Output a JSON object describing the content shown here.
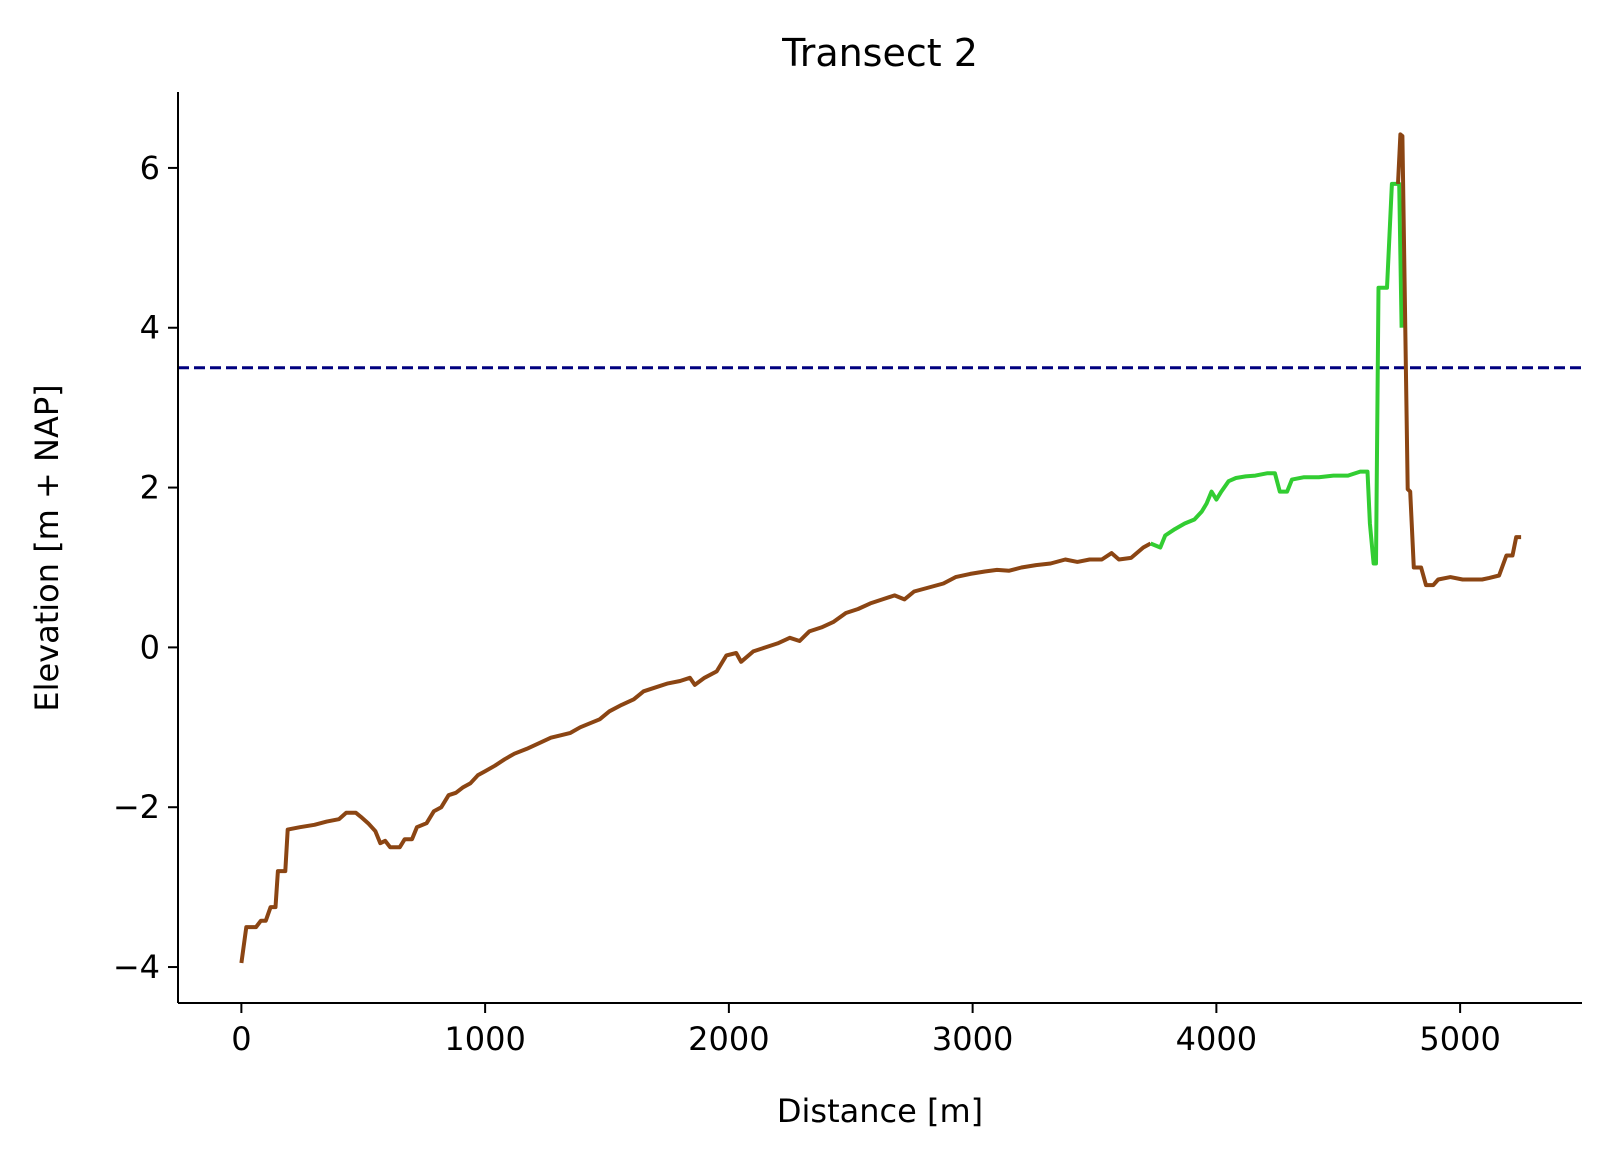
{
  "chart_data": {
    "type": "line",
    "title": "Transect 2",
    "xlabel": "Distance [m]",
    "ylabel": "Elevation [m + NAP]",
    "xlim": [
      -260,
      5500
    ],
    "ylim": [
      -4.45,
      6.95
    ],
    "x_ticks": [
      0,
      1000,
      2000,
      3000,
      4000,
      5000
    ],
    "x_tick_labels": [
      "0",
      "1000",
      "2000",
      "3000",
      "4000",
      "5000"
    ],
    "y_ticks": [
      -4,
      -2,
      0,
      2,
      4,
      6
    ],
    "y_tick_labels": [
      "−4",
      "−2",
      "0",
      "2",
      "4",
      "6"
    ],
    "grid": false,
    "reference_line": {
      "y": 3.5,
      "color": "#00007f",
      "style": "dashed"
    },
    "series": [
      {
        "color": "#8B4513",
        "points": [
          [
            0,
            -3.95
          ],
          [
            20,
            -3.5
          ],
          [
            60,
            -3.5
          ],
          [
            80,
            -3.42
          ],
          [
            100,
            -3.42
          ],
          [
            120,
            -3.25
          ],
          [
            140,
            -3.25
          ],
          [
            150,
            -2.8
          ],
          [
            180,
            -2.8
          ],
          [
            190,
            -2.28
          ],
          [
            240,
            -2.25
          ],
          [
            300,
            -2.22
          ],
          [
            350,
            -2.18
          ],
          [
            400,
            -2.15
          ],
          [
            430,
            -2.07
          ],
          [
            470,
            -2.07
          ],
          [
            490,
            -2.12
          ],
          [
            520,
            -2.2
          ],
          [
            550,
            -2.3
          ],
          [
            570,
            -2.45
          ],
          [
            590,
            -2.42
          ],
          [
            610,
            -2.5
          ],
          [
            650,
            -2.5
          ],
          [
            670,
            -2.4
          ],
          [
            700,
            -2.4
          ],
          [
            720,
            -2.25
          ],
          [
            760,
            -2.2
          ],
          [
            790,
            -2.05
          ],
          [
            820,
            -2.0
          ],
          [
            850,
            -1.85
          ],
          [
            880,
            -1.82
          ],
          [
            910,
            -1.75
          ],
          [
            940,
            -1.7
          ],
          [
            970,
            -1.6
          ],
          [
            1000,
            -1.55
          ],
          [
            1040,
            -1.48
          ],
          [
            1080,
            -1.4
          ],
          [
            1120,
            -1.33
          ],
          [
            1170,
            -1.27
          ],
          [
            1220,
            -1.2
          ],
          [
            1270,
            -1.13
          ],
          [
            1310,
            -1.1
          ],
          [
            1350,
            -1.07
          ],
          [
            1390,
            -1.0
          ],
          [
            1430,
            -0.95
          ],
          [
            1470,
            -0.9
          ],
          [
            1510,
            -0.8
          ],
          [
            1560,
            -0.72
          ],
          [
            1610,
            -0.65
          ],
          [
            1650,
            -0.55
          ],
          [
            1700,
            -0.5
          ],
          [
            1750,
            -0.45
          ],
          [
            1800,
            -0.42
          ],
          [
            1840,
            -0.38
          ],
          [
            1860,
            -0.47
          ],
          [
            1900,
            -0.38
          ],
          [
            1950,
            -0.3
          ],
          [
            1990,
            -0.1
          ],
          [
            2030,
            -0.07
          ],
          [
            2050,
            -0.18
          ],
          [
            2100,
            -0.05
          ],
          [
            2150,
            0.0
          ],
          [
            2200,
            0.05
          ],
          [
            2250,
            0.12
          ],
          [
            2290,
            0.08
          ],
          [
            2330,
            0.2
          ],
          [
            2380,
            0.25
          ],
          [
            2430,
            0.32
          ],
          [
            2480,
            0.43
          ],
          [
            2530,
            0.48
          ],
          [
            2580,
            0.55
          ],
          [
            2630,
            0.6
          ],
          [
            2680,
            0.65
          ],
          [
            2720,
            0.6
          ],
          [
            2760,
            0.7
          ],
          [
            2820,
            0.75
          ],
          [
            2880,
            0.8
          ],
          [
            2930,
            0.88
          ],
          [
            2990,
            0.92
          ],
          [
            3050,
            0.95
          ],
          [
            3100,
            0.97
          ],
          [
            3150,
            0.96
          ],
          [
            3200,
            1.0
          ],
          [
            3260,
            1.03
          ],
          [
            3320,
            1.05
          ],
          [
            3380,
            1.1
          ],
          [
            3430,
            1.07
          ],
          [
            3480,
            1.1
          ],
          [
            3530,
            1.1
          ],
          [
            3570,
            1.18
          ],
          [
            3600,
            1.1
          ],
          [
            3650,
            1.12
          ],
          [
            3700,
            1.25
          ],
          [
            3730,
            1.3
          ]
        ]
      },
      {
        "color": "#32CD32",
        "points": [
          [
            3730,
            1.3
          ],
          [
            3770,
            1.25
          ],
          [
            3790,
            1.4
          ],
          [
            3830,
            1.48
          ],
          [
            3870,
            1.55
          ],
          [
            3910,
            1.6
          ],
          [
            3940,
            1.7
          ],
          [
            3960,
            1.8
          ],
          [
            3980,
            1.95
          ],
          [
            4000,
            1.85
          ],
          [
            4020,
            1.95
          ],
          [
            4050,
            2.08
          ],
          [
            4080,
            2.12
          ],
          [
            4120,
            2.14
          ],
          [
            4160,
            2.15
          ],
          [
            4210,
            2.18
          ],
          [
            4240,
            2.18
          ],
          [
            4260,
            1.95
          ],
          [
            4290,
            1.95
          ],
          [
            4310,
            2.1
          ],
          [
            4360,
            2.13
          ],
          [
            4420,
            2.13
          ],
          [
            4480,
            2.15
          ],
          [
            4540,
            2.15
          ],
          [
            4590,
            2.2
          ],
          [
            4620,
            2.2
          ],
          [
            4630,
            1.55
          ],
          [
            4645,
            1.05
          ],
          [
            4655,
            1.05
          ],
          [
            4665,
            4.5
          ],
          [
            4700,
            4.5
          ],
          [
            4720,
            5.8
          ],
          [
            4750,
            5.8
          ],
          [
            4760,
            4.0
          ]
        ]
      },
      {
        "color": "#8B4513",
        "points": [
          [
            4745,
            5.8
          ],
          [
            4755,
            6.42
          ],
          [
            4763,
            6.4
          ],
          [
            4785,
            1.98
          ],
          [
            4795,
            1.95
          ],
          [
            4810,
            1.0
          ],
          [
            4840,
            1.0
          ],
          [
            4860,
            0.78
          ],
          [
            4890,
            0.78
          ],
          [
            4910,
            0.85
          ],
          [
            4960,
            0.88
          ],
          [
            5010,
            0.85
          ],
          [
            5060,
            0.85
          ],
          [
            5090,
            0.85
          ],
          [
            5120,
            0.87
          ],
          [
            5160,
            0.9
          ],
          [
            5190,
            1.15
          ],
          [
            5215,
            1.15
          ],
          [
            5230,
            1.38
          ],
          [
            5250,
            1.38
          ]
        ]
      }
    ]
  }
}
